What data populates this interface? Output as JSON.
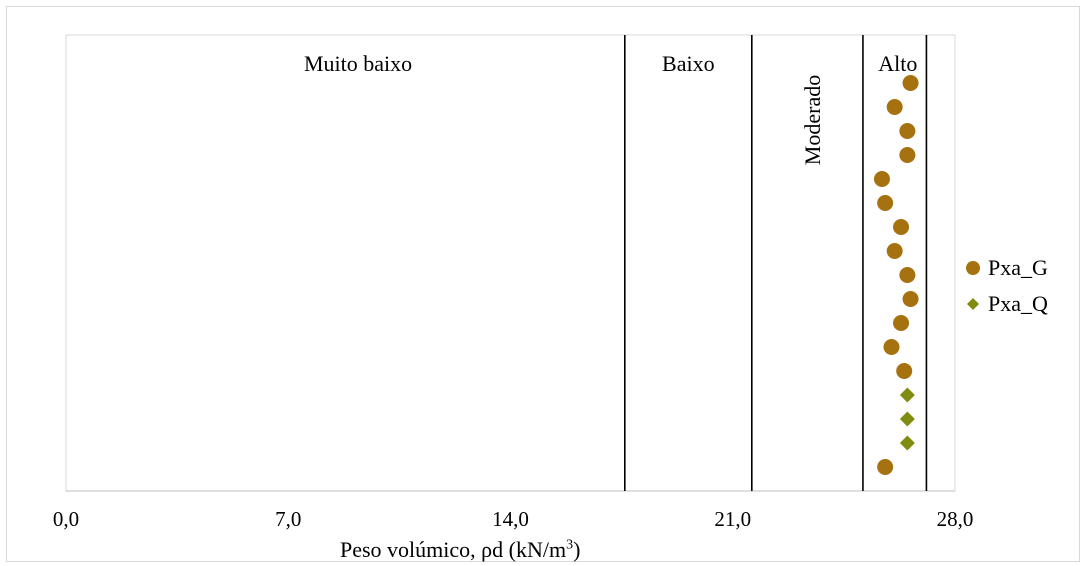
{
  "chart_data": {
    "type": "scatter",
    "xlabel": "Peso volúmico, ρd  (kN/m",
    "xlabel_sup": "3",
    "xlabel_close": ")",
    "xlim": [
      0,
      28
    ],
    "x_ticks": [
      "0,0",
      "7,0",
      "14,0",
      "21,0",
      "28,0"
    ],
    "x_tick_values": [
      0,
      7,
      14,
      21,
      28
    ],
    "class_boundaries": [
      17.6,
      21.6,
      25.1,
      27.1
    ],
    "class_labels": [
      {
        "label": "Muito baixo",
        "x": 9.2,
        "vertical": false
      },
      {
        "label": "Baixo",
        "x": 19.6,
        "vertical": false
      },
      {
        "label": "Moderado",
        "x": 23.5,
        "vertical": true
      },
      {
        "label": "Alto",
        "x": 26.2,
        "vertical": false
      }
    ],
    "n_rows": 17,
    "series": [
      {
        "name": "Pxa_G",
        "marker": "circle",
        "color": "#a6720f",
        "values": [
          {
            "x": 26.6,
            "row": 1
          },
          {
            "x": 26.1,
            "row": 2
          },
          {
            "x": 26.5,
            "row": 3
          },
          {
            "x": 26.5,
            "row": 4
          },
          {
            "x": 25.7,
            "row": 5
          },
          {
            "x": 25.8,
            "row": 6
          },
          {
            "x": 26.3,
            "row": 7
          },
          {
            "x": 26.1,
            "row": 8
          },
          {
            "x": 26.5,
            "row": 9
          },
          {
            "x": 26.6,
            "row": 10
          },
          {
            "x": 26.3,
            "row": 11
          },
          {
            "x": 26.0,
            "row": 12
          },
          {
            "x": 26.4,
            "row": 13
          },
          {
            "x": 25.8,
            "row": 17
          }
        ]
      },
      {
        "name": "Pxa_Q",
        "marker": "diamond",
        "color": "#7f8c10",
        "values": [
          {
            "x": 26.5,
            "row": 14
          },
          {
            "x": 26.5,
            "row": 15
          },
          {
            "x": 26.5,
            "row": 16
          }
        ]
      }
    ]
  },
  "legend": {
    "items": [
      {
        "label": "Pxa_G",
        "marker": "circle",
        "color": "#a6720f"
      },
      {
        "label": "Pxa_Q",
        "marker": "diamond",
        "color": "#7f8c10"
      }
    ]
  }
}
